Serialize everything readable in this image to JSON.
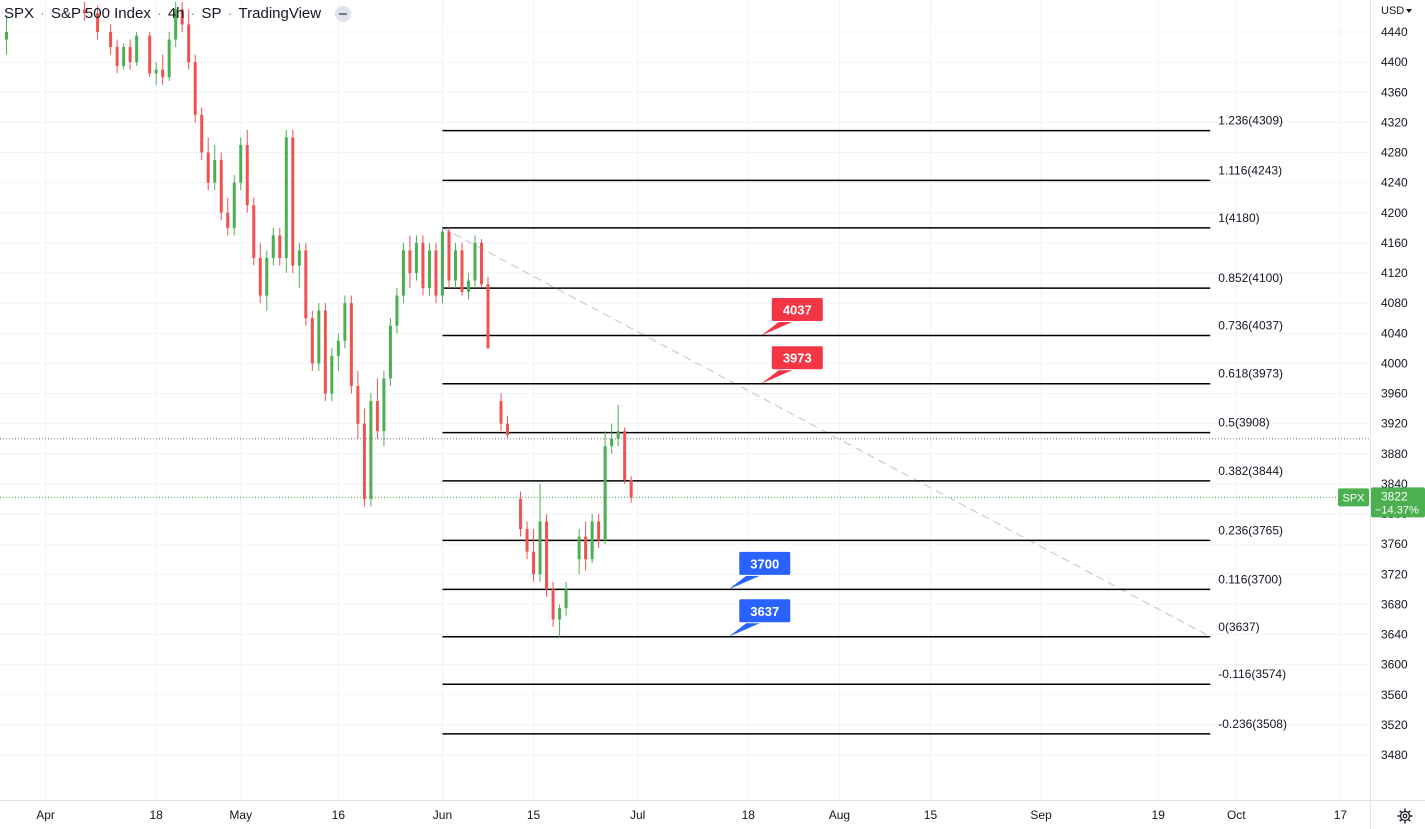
{
  "header": {
    "symbol": "SPX",
    "name": "S&P 500 Index",
    "interval": "4h",
    "exchange": "SP",
    "source": "TradingView"
  },
  "price_axis": {
    "currency": "USD",
    "ticks": [
      "4440",
      "4400",
      "4360",
      "4320",
      "4280",
      "4240",
      "4200",
      "4160",
      "4120",
      "4080",
      "4040",
      "4000",
      "3960",
      "3920",
      "3880",
      "3840",
      "3800",
      "3760",
      "3720",
      "3680",
      "3640",
      "3600",
      "3560",
      "3520",
      "3480"
    ]
  },
  "time_axis": {
    "ticks": [
      "Apr",
      "18",
      "May",
      "16",
      "Jun",
      "15",
      "Jul",
      "18",
      "Aug",
      "15",
      "Sep",
      "19",
      "Oct",
      "17"
    ]
  },
  "last_price": {
    "symbol_label": "SPX",
    "value": "3822",
    "change": "−14.37%",
    "color": "#4caf50"
  },
  "colors": {
    "up": "#4caf50",
    "down": "#ef5350",
    "callout_red": "#f23645",
    "callout_blue": "#2962ff",
    "grid": "#f0f3fa",
    "fib_line": "#000000",
    "trend_dash": "#c9ccd4"
  },
  "chart_data": {
    "type": "candlestick",
    "title": "",
    "y_scale": "linear",
    "ylim": [
      3452,
      4480
    ],
    "x_range": [
      "2022-03-25",
      "2022-10-30"
    ],
    "grid": true,
    "candles": [
      {
        "t": "2022-03-26",
        "o": 4430,
        "h": 4460,
        "l": 4410,
        "c": 4440
      },
      {
        "t": "2022-04-07",
        "o": 4470,
        "h": 4480,
        "l": 4455,
        "c": 4465
      },
      {
        "t": "2022-04-09",
        "o": 4465,
        "h": 4475,
        "l": 4430,
        "c": 4440
      },
      {
        "t": "2022-04-11",
        "o": 4440,
        "h": 4450,
        "l": 4410,
        "c": 4420
      },
      {
        "t": "2022-04-12",
        "o": 4420,
        "h": 4430,
        "l": 4385,
        "c": 4395
      },
      {
        "t": "2022-04-13",
        "o": 4395,
        "h": 4425,
        "l": 4390,
        "c": 4420
      },
      {
        "t": "2022-04-14",
        "o": 4420,
        "h": 4430,
        "l": 4390,
        "c": 4400
      },
      {
        "t": "2022-04-15",
        "o": 4400,
        "h": 4440,
        "l": 4395,
        "c": 4435
      },
      {
        "t": "2022-04-17",
        "o": 4435,
        "h": 4440,
        "l": 4380,
        "c": 4385
      },
      {
        "t": "2022-04-18",
        "o": 4385,
        "h": 4400,
        "l": 4370,
        "c": 4390
      },
      {
        "t": "2022-04-19",
        "o": 4390,
        "h": 4410,
        "l": 4370,
        "c": 4380
      },
      {
        "t": "2022-04-20",
        "o": 4380,
        "h": 4440,
        "l": 4375,
        "c": 4430
      },
      {
        "t": "2022-04-21",
        "o": 4430,
        "h": 4480,
        "l": 4420,
        "c": 4470
      },
      {
        "t": "2022-04-22",
        "o": 4470,
        "h": 4480,
        "l": 4440,
        "c": 4450
      },
      {
        "t": "2022-04-23",
        "o": 4450,
        "h": 4470,
        "l": 4390,
        "c": 4400
      },
      {
        "t": "2022-04-24",
        "o": 4400,
        "h": 4410,
        "l": 4320,
        "c": 4330
      },
      {
        "t": "2022-04-25",
        "o": 4330,
        "h": 4340,
        "l": 4270,
        "c": 4280
      },
      {
        "t": "2022-04-26",
        "o": 4280,
        "h": 4300,
        "l": 4230,
        "c": 4240
      },
      {
        "t": "2022-04-27",
        "o": 4240,
        "h": 4290,
        "l": 4230,
        "c": 4270
      },
      {
        "t": "2022-04-28",
        "o": 4270,
        "h": 4280,
        "l": 4190,
        "c": 4200
      },
      {
        "t": "2022-04-29",
        "o": 4200,
        "h": 4220,
        "l": 4170,
        "c": 4180
      },
      {
        "t": "2022-04-30",
        "o": 4180,
        "h": 4250,
        "l": 4170,
        "c": 4240
      },
      {
        "t": "2022-05-01",
        "o": 4240,
        "h": 4300,
        "l": 4230,
        "c": 4290
      },
      {
        "t": "2022-05-02",
        "o": 4290,
        "h": 4310,
        "l": 4200,
        "c": 4210
      },
      {
        "t": "2022-05-03",
        "o": 4210,
        "h": 4220,
        "l": 4130,
        "c": 4140
      },
      {
        "t": "2022-05-04",
        "o": 4140,
        "h": 4160,
        "l": 4080,
        "c": 4090
      },
      {
        "t": "2022-05-05",
        "o": 4090,
        "h": 4150,
        "l": 4070,
        "c": 4140
      },
      {
        "t": "2022-05-06",
        "o": 4140,
        "h": 4180,
        "l": 4130,
        "c": 4170
      },
      {
        "t": "2022-05-07",
        "o": 4170,
        "h": 4180,
        "l": 4130,
        "c": 4140
      },
      {
        "t": "2022-05-08",
        "o": 4140,
        "h": 4310,
        "l": 4120,
        "c": 4300
      },
      {
        "t": "2022-05-09",
        "o": 4300,
        "h": 4310,
        "l": 4120,
        "c": 4130
      },
      {
        "t": "2022-05-10",
        "o": 4130,
        "h": 4160,
        "l": 4100,
        "c": 4150
      },
      {
        "t": "2022-05-11",
        "o": 4150,
        "h": 4160,
        "l": 4050,
        "c": 4060
      },
      {
        "t": "2022-05-12",
        "o": 4060,
        "h": 4070,
        "l": 3990,
        "c": 4000
      },
      {
        "t": "2022-05-13",
        "o": 4000,
        "h": 4080,
        "l": 3990,
        "c": 4070
      },
      {
        "t": "2022-05-14",
        "o": 4070,
        "h": 4080,
        "l": 3950,
        "c": 3960
      },
      {
        "t": "2022-05-15",
        "o": 3960,
        "h": 4020,
        "l": 3950,
        "c": 4010
      },
      {
        "t": "2022-05-16",
        "o": 4010,
        "h": 4040,
        "l": 3990,
        "c": 4030
      },
      {
        "t": "2022-05-17",
        "o": 4030,
        "h": 4090,
        "l": 4020,
        "c": 4080
      },
      {
        "t": "2022-05-18",
        "o": 4080,
        "h": 4090,
        "l": 3960,
        "c": 3970
      },
      {
        "t": "2022-05-19",
        "o": 3970,
        "h": 3990,
        "l": 3900,
        "c": 3920
      },
      {
        "t": "2022-05-20",
        "o": 3920,
        "h": 3940,
        "l": 3810,
        "c": 3820
      },
      {
        "t": "2022-05-21",
        "o": 3820,
        "h": 3960,
        "l": 3810,
        "c": 3950
      },
      {
        "t": "2022-05-22",
        "o": 3950,
        "h": 3980,
        "l": 3900,
        "c": 3910
      },
      {
        "t": "2022-05-23",
        "o": 3910,
        "h": 3990,
        "l": 3890,
        "c": 3980
      },
      {
        "t": "2022-05-24",
        "o": 3980,
        "h": 4060,
        "l": 3970,
        "c": 4050
      },
      {
        "t": "2022-05-25",
        "o": 4050,
        "h": 4100,
        "l": 4040,
        "c": 4090
      },
      {
        "t": "2022-05-26",
        "o": 4090,
        "h": 4160,
        "l": 4080,
        "c": 4150
      },
      {
        "t": "2022-05-27",
        "o": 4150,
        "h": 4170,
        "l": 4100,
        "c": 4120
      },
      {
        "t": "2022-05-28",
        "o": 4120,
        "h": 4170,
        "l": 4110,
        "c": 4160
      },
      {
        "t": "2022-05-29",
        "o": 4160,
        "h": 4170,
        "l": 4090,
        "c": 4100
      },
      {
        "t": "2022-05-30",
        "o": 4100,
        "h": 4160,
        "l": 4090,
        "c": 4150
      },
      {
        "t": "2022-05-31",
        "o": 4150,
        "h": 4160,
        "l": 4080,
        "c": 4090
      },
      {
        "t": "2022-06-01",
        "o": 4090,
        "h": 4180,
        "l": 4080,
        "c": 4175
      },
      {
        "t": "2022-06-02",
        "o": 4175,
        "h": 4180,
        "l": 4100,
        "c": 4110
      },
      {
        "t": "2022-06-03",
        "o": 4110,
        "h": 4160,
        "l": 4100,
        "c": 4150
      },
      {
        "t": "2022-06-04",
        "o": 4150,
        "h": 4160,
        "l": 4090,
        "c": 4095
      },
      {
        "t": "2022-06-05",
        "o": 4095,
        "h": 4120,
        "l": 4085,
        "c": 4110
      },
      {
        "t": "2022-06-06",
        "o": 4110,
        "h": 4170,
        "l": 4100,
        "c": 4160
      },
      {
        "t": "2022-06-07",
        "o": 4160,
        "h": 4165,
        "l": 4100,
        "c": 4105
      },
      {
        "t": "2022-06-08",
        "o": 4105,
        "h": 4115,
        "l": 4020,
        "c": 4020
      },
      {
        "t": "2022-06-10",
        "o": 3950,
        "h": 3960,
        "l": 3910,
        "c": 3920
      },
      {
        "t": "2022-06-11",
        "o": 3920,
        "h": 3930,
        "l": 3900,
        "c": 3905
      },
      {
        "t": "2022-06-13",
        "o": 3820,
        "h": 3830,
        "l": 3770,
        "c": 3780
      },
      {
        "t": "2022-06-14",
        "o": 3780,
        "h": 3790,
        "l": 3740,
        "c": 3750
      },
      {
        "t": "2022-06-15",
        "o": 3750,
        "h": 3780,
        "l": 3710,
        "c": 3720
      },
      {
        "t": "2022-06-16",
        "o": 3720,
        "h": 3840,
        "l": 3710,
        "c": 3790
      },
      {
        "t": "2022-06-17",
        "o": 3790,
        "h": 3800,
        "l": 3690,
        "c": 3700
      },
      {
        "t": "2022-06-18",
        "o": 3700,
        "h": 3710,
        "l": 3650,
        "c": 3660
      },
      {
        "t": "2022-06-19",
        "o": 3660,
        "h": 3680,
        "l": 3637,
        "c": 3675
      },
      {
        "t": "2022-06-20",
        "o": 3675,
        "h": 3710,
        "l": 3665,
        "c": 3700
      },
      {
        "t": "2022-06-22",
        "o": 3740,
        "h": 3780,
        "l": 3720,
        "c": 3770
      },
      {
        "t": "2022-06-23",
        "o": 3770,
        "h": 3790,
        "l": 3725,
        "c": 3740
      },
      {
        "t": "2022-06-24",
        "o": 3740,
        "h": 3800,
        "l": 3735,
        "c": 3790
      },
      {
        "t": "2022-06-25",
        "o": 3790,
        "h": 3800,
        "l": 3755,
        "c": 3765
      },
      {
        "t": "2022-06-26",
        "o": 3765,
        "h": 3910,
        "l": 3760,
        "c": 3890
      },
      {
        "t": "2022-06-27",
        "o": 3890,
        "h": 3920,
        "l": 3880,
        "c": 3900
      },
      {
        "t": "2022-06-28",
        "o": 3900,
        "h": 3945,
        "l": 3890,
        "c": 3910
      },
      {
        "t": "2022-06-29",
        "o": 3910,
        "h": 3915,
        "l": 3840,
        "c": 3845
      },
      {
        "t": "2022-06-30",
        "o": 3845,
        "h": 3850,
        "l": 3815,
        "c": 3822
      }
    ],
    "fib_levels": [
      {
        "ratio": "1.236",
        "price": 4309,
        "label": "1.236(4309)"
      },
      {
        "ratio": "1.116",
        "price": 4243,
        "label": "1.116(4243)"
      },
      {
        "ratio": "1",
        "price": 4180,
        "label": "1(4180)"
      },
      {
        "ratio": "0.852",
        "price": 4100,
        "label": "0.852(4100)"
      },
      {
        "ratio": "0.736",
        "price": 4037,
        "label": "0.736(4037)"
      },
      {
        "ratio": "0.618",
        "price": 3973,
        "label": "0.618(3973)"
      },
      {
        "ratio": "0.5",
        "price": 3908,
        "label": "0.5(3908)"
      },
      {
        "ratio": "0.382",
        "price": 3844,
        "label": "0.382(3844)"
      },
      {
        "ratio": "0.236",
        "price": 3765,
        "label": "0.236(3765)"
      },
      {
        "ratio": "0.116",
        "price": 3700,
        "label": "0.116(3700)"
      },
      {
        "ratio": "0",
        "price": 3637,
        "label": "0(3637)"
      },
      {
        "ratio": "-0.116",
        "price": 3574,
        "label": "-0.116(3574)"
      },
      {
        "ratio": "-0.236",
        "price": 3508,
        "label": "-0.236(3508)"
      }
    ],
    "fib_range": {
      "start": "2022-06-01",
      "end": "2022-09-27"
    },
    "trend_line": {
      "from": {
        "t": "2022-06-01",
        "price": 4180
      },
      "to": {
        "t": "2022-09-27",
        "price": 3637
      }
    },
    "callouts": [
      {
        "text": "4037",
        "price": 4037,
        "anchor_t": "2022-07-20",
        "color": "red"
      },
      {
        "text": "3973",
        "price": 3973,
        "anchor_t": "2022-07-20",
        "color": "red"
      },
      {
        "text": "3700",
        "price": 3700,
        "anchor_t": "2022-07-15",
        "color": "blue"
      },
      {
        "text": "3637",
        "price": 3637,
        "anchor_t": "2022-07-15",
        "color": "blue"
      }
    ],
    "horizontal_markers": [
      {
        "price": 3900,
        "style": "dotted",
        "color": "#787b86"
      },
      {
        "price": 3822,
        "style": "dotted",
        "color": "#4caf50"
      }
    ]
  }
}
